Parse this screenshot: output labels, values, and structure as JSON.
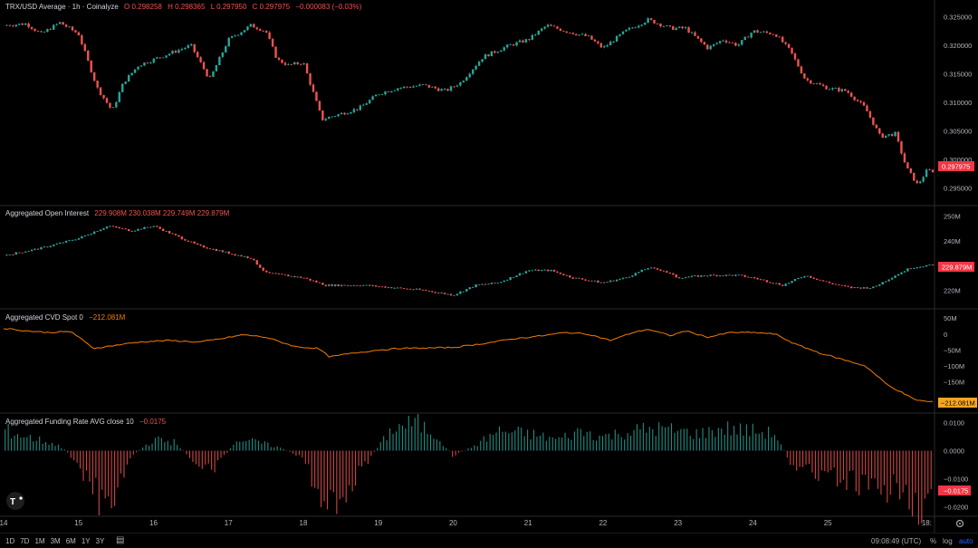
{
  "colors": {
    "up": "#26a69a",
    "down": "#ef5350",
    "cvd": "#f57c00",
    "grid": "#1e1e1e",
    "axis_text": "#b2b5be",
    "badge_red": "#f23645",
    "badge_orange": "#f5a623",
    "divider": "#2a2a2a"
  },
  "pane1": {
    "title": "TRX/USD Average · 1h · Coinalyze",
    "o": "O 0.298258",
    "h": "H 0.298365",
    "l": "L 0.297950",
    "c": "C 0.297975",
    "chg": "−0.000083 (−0.03%)",
    "badge": "0.297975"
  },
  "pane2": {
    "title": "Aggregated Open Interest",
    "values": "229.908M 230.038M 229.749M 229.879M",
    "badge": "229.879M"
  },
  "pane3": {
    "title": "Aggregated CVD Spot 0",
    "value": "−212.081M",
    "badge": "−212.081M"
  },
  "pane4": {
    "title": "Aggregated Funding Rate AVG close 10",
    "value": "−0.0175",
    "badge": "−0.0175"
  },
  "timeframes": [
    "1D",
    "7D",
    "1M",
    "3M",
    "6M",
    "1Y",
    "3Y"
  ],
  "status": {
    "time": "09:08:49 (UTC)",
    "pct": "%",
    "log": "log",
    "auto": "auto"
  },
  "chart_data": [
    {
      "type": "candlestick",
      "name": "TRX/USD Average",
      "ylim": [
        0.293,
        0.327
      ],
      "yticks": [
        "0.325000",
        "0.320000",
        "0.315000",
        "0.310000",
        "0.305000",
        "0.300000",
        "0.295000"
      ],
      "ytick_values": [
        0.325,
        0.32,
        0.315,
        0.31,
        0.305,
        0.3,
        0.295
      ],
      "x_days": [
        "14",
        "15",
        "16",
        "17",
        "18",
        "19",
        "20",
        "21",
        "22",
        "23",
        "24",
        "25",
        "18:"
      ],
      "x_day_values": [
        13,
        14,
        15,
        16,
        17,
        18,
        19,
        20,
        21,
        22,
        23,
        24,
        25.32
      ],
      "xlim": [
        13,
        25.4
      ],
      "anchors": [
        [
          13.0,
          0.3235
        ],
        [
          13.3,
          0.3238
        ],
        [
          13.5,
          0.322
        ],
        [
          13.75,
          0.324
        ],
        [
          14.0,
          0.322
        ],
        [
          14.25,
          0.3125
        ],
        [
          14.45,
          0.3085
        ],
        [
          14.6,
          0.3135
        ],
        [
          14.8,
          0.3165
        ],
        [
          15.0,
          0.3175
        ],
        [
          15.3,
          0.319
        ],
        [
          15.5,
          0.32
        ],
        [
          15.75,
          0.314
        ],
        [
          16.0,
          0.321
        ],
        [
          16.3,
          0.3235
        ],
        [
          16.5,
          0.3225
        ],
        [
          16.65,
          0.3175
        ],
        [
          16.8,
          0.3165
        ],
        [
          17.0,
          0.317
        ],
        [
          17.25,
          0.307
        ],
        [
          17.5,
          0.308
        ],
        [
          17.75,
          0.309
        ],
        [
          18.0,
          0.3115
        ],
        [
          18.25,
          0.3125
        ],
        [
          18.6,
          0.313
        ],
        [
          18.9,
          0.312
        ],
        [
          19.1,
          0.3135
        ],
        [
          19.4,
          0.318
        ],
        [
          19.75,
          0.32
        ],
        [
          20.0,
          0.321
        ],
        [
          20.25,
          0.3235
        ],
        [
          20.5,
          0.3225
        ],
        [
          20.8,
          0.3215
        ],
        [
          21.0,
          0.3195
        ],
        [
          21.3,
          0.3225
        ],
        [
          21.6,
          0.3245
        ],
        [
          21.9,
          0.323
        ],
        [
          22.1,
          0.323
        ],
        [
          22.4,
          0.3195
        ],
        [
          22.6,
          0.321
        ],
        [
          22.8,
          0.32
        ],
        [
          23.0,
          0.3225
        ],
        [
          23.3,
          0.322
        ],
        [
          23.5,
          0.319
        ],
        [
          23.7,
          0.314
        ],
        [
          24.0,
          0.3125
        ],
        [
          24.25,
          0.312
        ],
        [
          24.5,
          0.309
        ],
        [
          24.7,
          0.304
        ],
        [
          24.9,
          0.3045
        ],
        [
          25.05,
          0.2985
        ],
        [
          25.2,
          0.2955
        ],
        [
          25.32,
          0.298
        ]
      ]
    },
    {
      "type": "candlestick",
      "name": "Aggregated Open Interest",
      "ylim": [
        215,
        252
      ],
      "yticks": [
        "250M",
        "240M",
        "220M"
      ],
      "ytick_values": [
        250,
        240,
        220
      ],
      "anchors": [
        [
          13.0,
          234
        ],
        [
          13.5,
          237
        ],
        [
          14.0,
          241
        ],
        [
          14.4,
          246
        ],
        [
          14.7,
          244
        ],
        [
          15.0,
          246
        ],
        [
          15.3,
          242
        ],
        [
          15.6,
          238
        ],
        [
          16.0,
          235
        ],
        [
          16.3,
          233
        ],
        [
          16.5,
          227
        ],
        [
          17.0,
          225
        ],
        [
          17.3,
          222
        ],
        [
          17.8,
          222
        ],
        [
          18.2,
          221
        ],
        [
          18.6,
          220
        ],
        [
          19.0,
          218
        ],
        [
          19.3,
          222
        ],
        [
          19.6,
          223
        ],
        [
          20.0,
          228
        ],
        [
          20.3,
          228
        ],
        [
          20.6,
          225
        ],
        [
          21.0,
          223
        ],
        [
          21.3,
          225
        ],
        [
          21.6,
          229
        ],
        [
          21.8,
          228
        ],
        [
          22.0,
          225
        ],
        [
          22.4,
          226
        ],
        [
          22.8,
          226
        ],
        [
          23.0,
          225
        ],
        [
          23.4,
          222
        ],
        [
          23.7,
          226
        ],
        [
          24.0,
          223
        ],
        [
          24.3,
          221
        ],
        [
          24.6,
          221
        ],
        [
          24.9,
          226
        ],
        [
          25.1,
          229
        ],
        [
          25.32,
          230
        ]
      ]
    },
    {
      "type": "line",
      "name": "Aggregated CVD Spot",
      "ylim": [
        -228,
        62
      ],
      "yticks": [
        "50M",
        "0",
        "−50M",
        "−100M",
        "−150M"
      ],
      "ytick_values": [
        50,
        0,
        -50,
        -100,
        -150
      ],
      "anchors": [
        [
          13.0,
          18
        ],
        [
          13.3,
          10
        ],
        [
          13.6,
          5
        ],
        [
          13.9,
          8
        ],
        [
          14.2,
          -45
        ],
        [
          14.5,
          -35
        ],
        [
          14.8,
          -25
        ],
        [
          15.2,
          -20
        ],
        [
          15.6,
          -25
        ],
        [
          15.9,
          -15
        ],
        [
          16.2,
          -2
        ],
        [
          16.5,
          -10
        ],
        [
          16.9,
          -40
        ],
        [
          17.2,
          -45
        ],
        [
          17.35,
          -72
        ],
        [
          17.6,
          -62
        ],
        [
          18.0,
          -50
        ],
        [
          18.3,
          -45
        ],
        [
          18.6,
          -44
        ],
        [
          19.0,
          -42
        ],
        [
          19.4,
          -30
        ],
        [
          19.8,
          -15
        ],
        [
          20.2,
          -5
        ],
        [
          20.5,
          5
        ],
        [
          20.8,
          0
        ],
        [
          21.1,
          -20
        ],
        [
          21.4,
          5
        ],
        [
          21.6,
          15
        ],
        [
          21.9,
          -5
        ],
        [
          22.1,
          10
        ],
        [
          22.4,
          -10
        ],
        [
          22.7,
          5
        ],
        [
          23.0,
          5
        ],
        [
          23.3,
          0
        ],
        [
          23.55,
          -30
        ],
        [
          23.9,
          -60
        ],
        [
          24.2,
          -80
        ],
        [
          24.5,
          -100
        ],
        [
          24.8,
          -160
        ],
        [
          25.0,
          -185
        ],
        [
          25.15,
          -205
        ],
        [
          25.32,
          -212
        ]
      ]
    },
    {
      "type": "bar",
      "name": "Aggregated Funding Rate AVG close 10",
      "ylim": [
        -0.0215,
        0.0115
      ],
      "yticks": [
        "0.0100",
        "0.0000",
        "−0.0100",
        "−0.0200"
      ],
      "ytick_values": [
        0.01,
        0,
        -0.01,
        -0.02
      ],
      "anchors": [
        [
          13.0,
          0.0075
        ],
        [
          13.3,
          0.005
        ],
        [
          13.6,
          0.003
        ],
        [
          13.8,
          0.001
        ],
        [
          14.0,
          -0.005
        ],
        [
          14.3,
          -0.018
        ],
        [
          14.5,
          -0.014
        ],
        [
          14.7,
          -0.002
        ],
        [
          15.0,
          0.004
        ],
        [
          15.3,
          0.003
        ],
        [
          15.5,
          -0.003
        ],
        [
          15.8,
          -0.008
        ],
        [
          16.1,
          0.004
        ],
        [
          16.4,
          0.003
        ],
        [
          16.7,
          0.001
        ],
        [
          17.0,
          -0.003
        ],
        [
          17.3,
          -0.02
        ],
        [
          17.6,
          -0.014
        ],
        [
          17.9,
          -0.002
        ],
        [
          18.2,
          0.008
        ],
        [
          18.5,
          0.01
        ],
        [
          18.8,
          0.005
        ],
        [
          19.0,
          -0.002
        ],
        [
          19.3,
          0.002
        ],
        [
          19.6,
          0.007
        ],
        [
          20.0,
          0.006
        ],
        [
          20.4,
          0.004
        ],
        [
          20.7,
          0.007
        ],
        [
          21.0,
          0.005
        ],
        [
          21.4,
          0.007
        ],
        [
          21.7,
          0.008
        ],
        [
          22.0,
          0.007
        ],
        [
          22.3,
          0.006
        ],
        [
          22.6,
          0.008
        ],
        [
          23.0,
          0.007
        ],
        [
          23.3,
          0.006
        ],
        [
          23.5,
          -0.004
        ],
        [
          23.8,
          -0.008
        ],
        [
          24.1,
          -0.01
        ],
        [
          24.4,
          -0.012
        ],
        [
          24.7,
          -0.016
        ],
        [
          25.0,
          -0.012
        ],
        [
          25.2,
          -0.02
        ],
        [
          25.32,
          -0.0175
        ]
      ]
    }
  ]
}
